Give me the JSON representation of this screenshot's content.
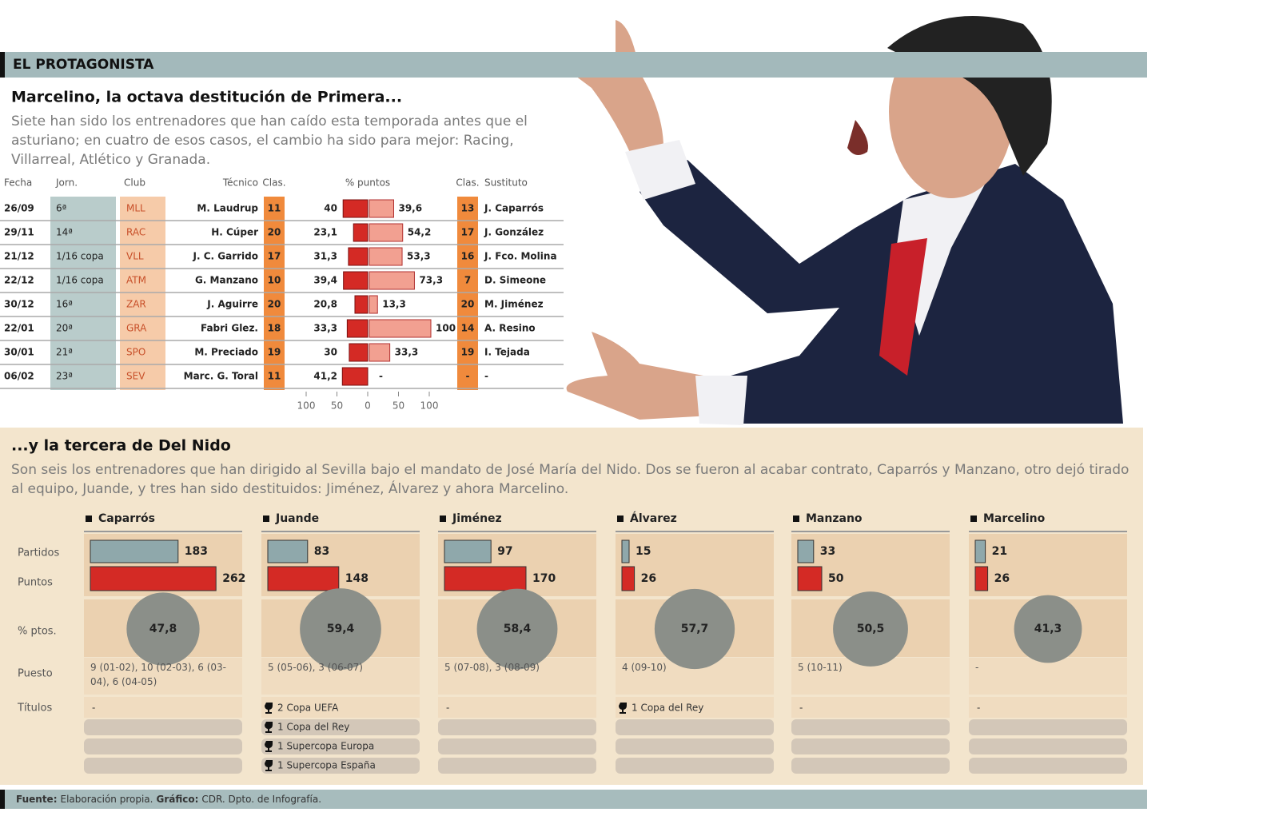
{
  "header": {
    "kicker": "EL PROTAGONISTA"
  },
  "section1": {
    "title": "Marcelino, la octava destitución de Primera...",
    "intro": "Siete han sido los entrenadores que han caído esta temporada antes que el asturiano; en cuatro de esos casos, el cambio ha sido para mejor: Racing, Villarreal, Atlético y Granada.",
    "columns": [
      "Fecha",
      "Jorn.",
      "Club",
      "Técnico",
      "Clas.",
      "% puntos",
      "Clas.",
      "Sustituto"
    ],
    "rows": [
      {
        "fecha": "26/09",
        "jornada": "6ª",
        "club": "MLL",
        "tecnico": "M. Laudrup",
        "clas": 11,
        "pct_before": 40,
        "pct_after": {
          "value": 39.6,
          "label": "39,6"
        },
        "clas_after": 13,
        "sustituto": "J. Caparrós"
      },
      {
        "fecha": "29/11",
        "jornada": "14ª",
        "club": "RAC",
        "tecnico": "H. Cúper",
        "clas": 20,
        "pct_before": {
          "value": 23.1,
          "label": "23,1"
        },
        "pct_after": {
          "value": 54.2,
          "label": "54,2"
        },
        "clas_after": 17,
        "sustituto": "J. González"
      },
      {
        "fecha": "21/12",
        "jornada": "1/16 copa",
        "club": "VLL",
        "tecnico": "J. C. Garrido",
        "clas": 17,
        "pct_before": {
          "value": 31.3,
          "label": "31,3"
        },
        "pct_after": {
          "value": 53.3,
          "label": "53,3"
        },
        "clas_after": 16,
        "sustituto": "J. Fco. Molina"
      },
      {
        "fecha": "22/12",
        "jornada": "1/16 copa",
        "club": "ATM",
        "tecnico": "G. Manzano",
        "clas": 10,
        "pct_before": {
          "value": 39.4,
          "label": "39,4"
        },
        "pct_after": {
          "value": 73.3,
          "label": "73,3"
        },
        "clas_after": 7,
        "sustituto": "D. Simeone"
      },
      {
        "fecha": "30/12",
        "jornada": "16ª",
        "club": "ZAR",
        "tecnico": "J. Aguirre",
        "clas": 20,
        "pct_before": {
          "value": 20.8,
          "label": "20,8"
        },
        "pct_after": {
          "value": 13.3,
          "label": "13,3"
        },
        "clas_after": 20,
        "sustituto": "M. Jiménez"
      },
      {
        "fecha": "22/01",
        "jornada": "20ª",
        "club": "GRA",
        "tecnico": "Fabri Glez.",
        "clas": 18,
        "pct_before": {
          "value": 33.3,
          "label": "33,3"
        },
        "pct_after": 100,
        "clas_after": 14,
        "sustituto": "A. Resino"
      },
      {
        "fecha": "30/01",
        "jornada": "21ª",
        "club": "SPO",
        "tecnico": "M. Preciado",
        "clas": 19,
        "pct_before": 30,
        "pct_after": {
          "value": 33.3,
          "label": "33,3"
        },
        "clas_after": 19,
        "sustituto": "I. Tejada"
      },
      {
        "fecha": "06/02",
        "jornada": "23ª",
        "club": "SEV",
        "tecnico": "Marc. G. Toral",
        "clas": 11,
        "pct_before": {
          "value": 41.2,
          "label": "41,2"
        },
        "pct_after": "-",
        "clas_after": "-",
        "sustituto": "-"
      }
    ],
    "pct_axis_ticks": [
      {
        "value": -100,
        "label": "100"
      },
      {
        "value": -50,
        "label": "50"
      },
      0,
      50,
      100
    ]
  },
  "section2": {
    "title": "...y la tercera de Del Nido",
    "intro": "Son seis los entrenadores que han dirigido al Sevilla bajo el mandato de José María del Nido. Dos se fueron al acabar contrato, Caparrós y Manzano, otro dejó tirado al equipo, Juande, y tres han sido destituidos: Jiménez, Álvarez y ahora Marcelino.",
    "row_labels": [
      "Partidos",
      "Puntos",
      "% ptos.",
      "Puesto",
      "Títulos"
    ],
    "coaches": [
      {
        "name": "Caparrós",
        "partidos": 183,
        "puntos": 262,
        "pct_puntos": {
          "value": 47.8,
          "label": "47,8"
        },
        "puesto": "9 (01-02), 10 (02-03), 6 (03-04), 6 (04-05)",
        "titulos": [
          "-"
        ]
      },
      {
        "name": "Juande",
        "partidos": 83,
        "puntos": 148,
        "pct_puntos": {
          "value": 59.4,
          "label": "59,4"
        },
        "puesto": "5 (05-06), 3 (06-07)",
        "titulos": [
          "2 Copa UEFA",
          "1 Copa del Rey",
          "1 Supercopa Europa",
          "1 Supercopa España"
        ]
      },
      {
        "name": "Jiménez",
        "partidos": 97,
        "puntos": 170,
        "pct_puntos": {
          "value": 58.4,
          "label": "58,4"
        },
        "puesto": "5 (07-08), 3 (08-09)",
        "titulos": [
          "-"
        ]
      },
      {
        "name": "Álvarez",
        "partidos": 15,
        "puntos": 26,
        "pct_puntos": {
          "value": 57.7,
          "label": "57,7"
        },
        "puesto": "4 (09-10)",
        "titulos": [
          "1 Copa del Rey"
        ]
      },
      {
        "name": "Manzano",
        "partidos": 33,
        "puntos": 50,
        "pct_puntos": {
          "value": 50.5,
          "label": "50,5"
        },
        "puesto": "5 (10-11)",
        "titulos": [
          "-"
        ]
      },
      {
        "name": "Marcelino",
        "partidos": 21,
        "puntos": 26,
        "pct_puntos": {
          "value": 41.3,
          "label": "41,3"
        },
        "puesto": "-",
        "titulos": [
          "-"
        ]
      }
    ]
  },
  "footer": {
    "source_label": "Fuente:",
    "source": "Elaboración propia.",
    "graphic_label": "Gráfico:",
    "graphic": "CDR. Dpto. de Infografía."
  }
}
